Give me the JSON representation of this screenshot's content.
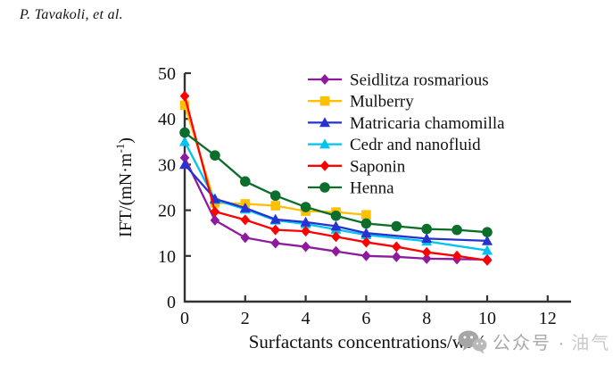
{
  "header": {
    "title": "P. Tavakoli, et al."
  },
  "watermark": {
    "prefix": "公众号 ·",
    "suffix": "油气"
  },
  "chart_data": {
    "type": "line",
    "title": "",
    "xlabel": "Surfactants concentrations/wt%",
    "ylabel": "IFT/(mN·m⁻¹)",
    "ylabel_parts": {
      "main": "IFT/(mN·m",
      "sup": "-1",
      "close": ")"
    },
    "xlim": [
      0,
      12
    ],
    "ylim": [
      0,
      50
    ],
    "x_ticks": [
      0,
      2,
      4,
      6,
      8,
      10,
      12
    ],
    "y_ticks": [
      0,
      10,
      20,
      30,
      40,
      50
    ],
    "grid": false,
    "legend_position": "upper-right-inside",
    "axis_color": "#333333",
    "series": [
      {
        "name": "Seidlitza rosmarious",
        "color": "#8E1A9E",
        "marker": "diamond",
        "x": [
          0,
          1,
          2,
          3,
          4,
          5,
          6,
          7,
          8,
          9,
          10
        ],
        "y": [
          31.5,
          17.8,
          14,
          12.8,
          12,
          11,
          10,
          9.8,
          9.4,
          9.3,
          9.2
        ]
      },
      {
        "name": "Mulberry",
        "color": "#FFC000",
        "marker": "square",
        "x": [
          0,
          1,
          2,
          3,
          4,
          5,
          6
        ],
        "y": [
          43,
          21.6,
          21.4,
          21,
          19.8,
          19.6,
          19
        ]
      },
      {
        "name": "Matricaria chamomilla",
        "color": "#2633D1",
        "marker": "triangle",
        "x": [
          0,
          1,
          2,
          3,
          4,
          5,
          6,
          8,
          10
        ],
        "y": [
          30,
          22.5,
          20.5,
          18,
          17.4,
          16.5,
          15,
          13.8,
          13.3
        ]
      },
      {
        "name": "Cedr and nanofluid",
        "color": "#00C3F0",
        "marker": "triangle",
        "x": [
          0,
          1,
          2,
          3,
          4,
          5,
          6,
          8,
          10
        ],
        "y": [
          35,
          22.3,
          20.2,
          17.8,
          17,
          15.8,
          14.6,
          13.2,
          11.2
        ]
      },
      {
        "name": "Saponin",
        "color": "#FF0000",
        "marker": "diamond",
        "x": [
          0,
          1,
          2,
          3,
          4,
          5,
          6,
          7,
          8,
          9,
          10
        ],
        "y": [
          45,
          19.7,
          17.9,
          15.7,
          15.4,
          14.2,
          13,
          12,
          10.8,
          10,
          9
        ]
      },
      {
        "name": "Henna",
        "color": "#0B6E2B",
        "marker": "circle",
        "x": [
          0,
          1,
          2,
          3,
          4,
          5,
          6,
          7,
          8,
          9,
          10
        ],
        "y": [
          37,
          32,
          26.3,
          23.2,
          20.7,
          18.8,
          17.1,
          16.5,
          15.9,
          15.7,
          15.2
        ]
      }
    ],
    "draw_order_indices": [
      0,
      1,
      3,
      2,
      4,
      5
    ]
  }
}
